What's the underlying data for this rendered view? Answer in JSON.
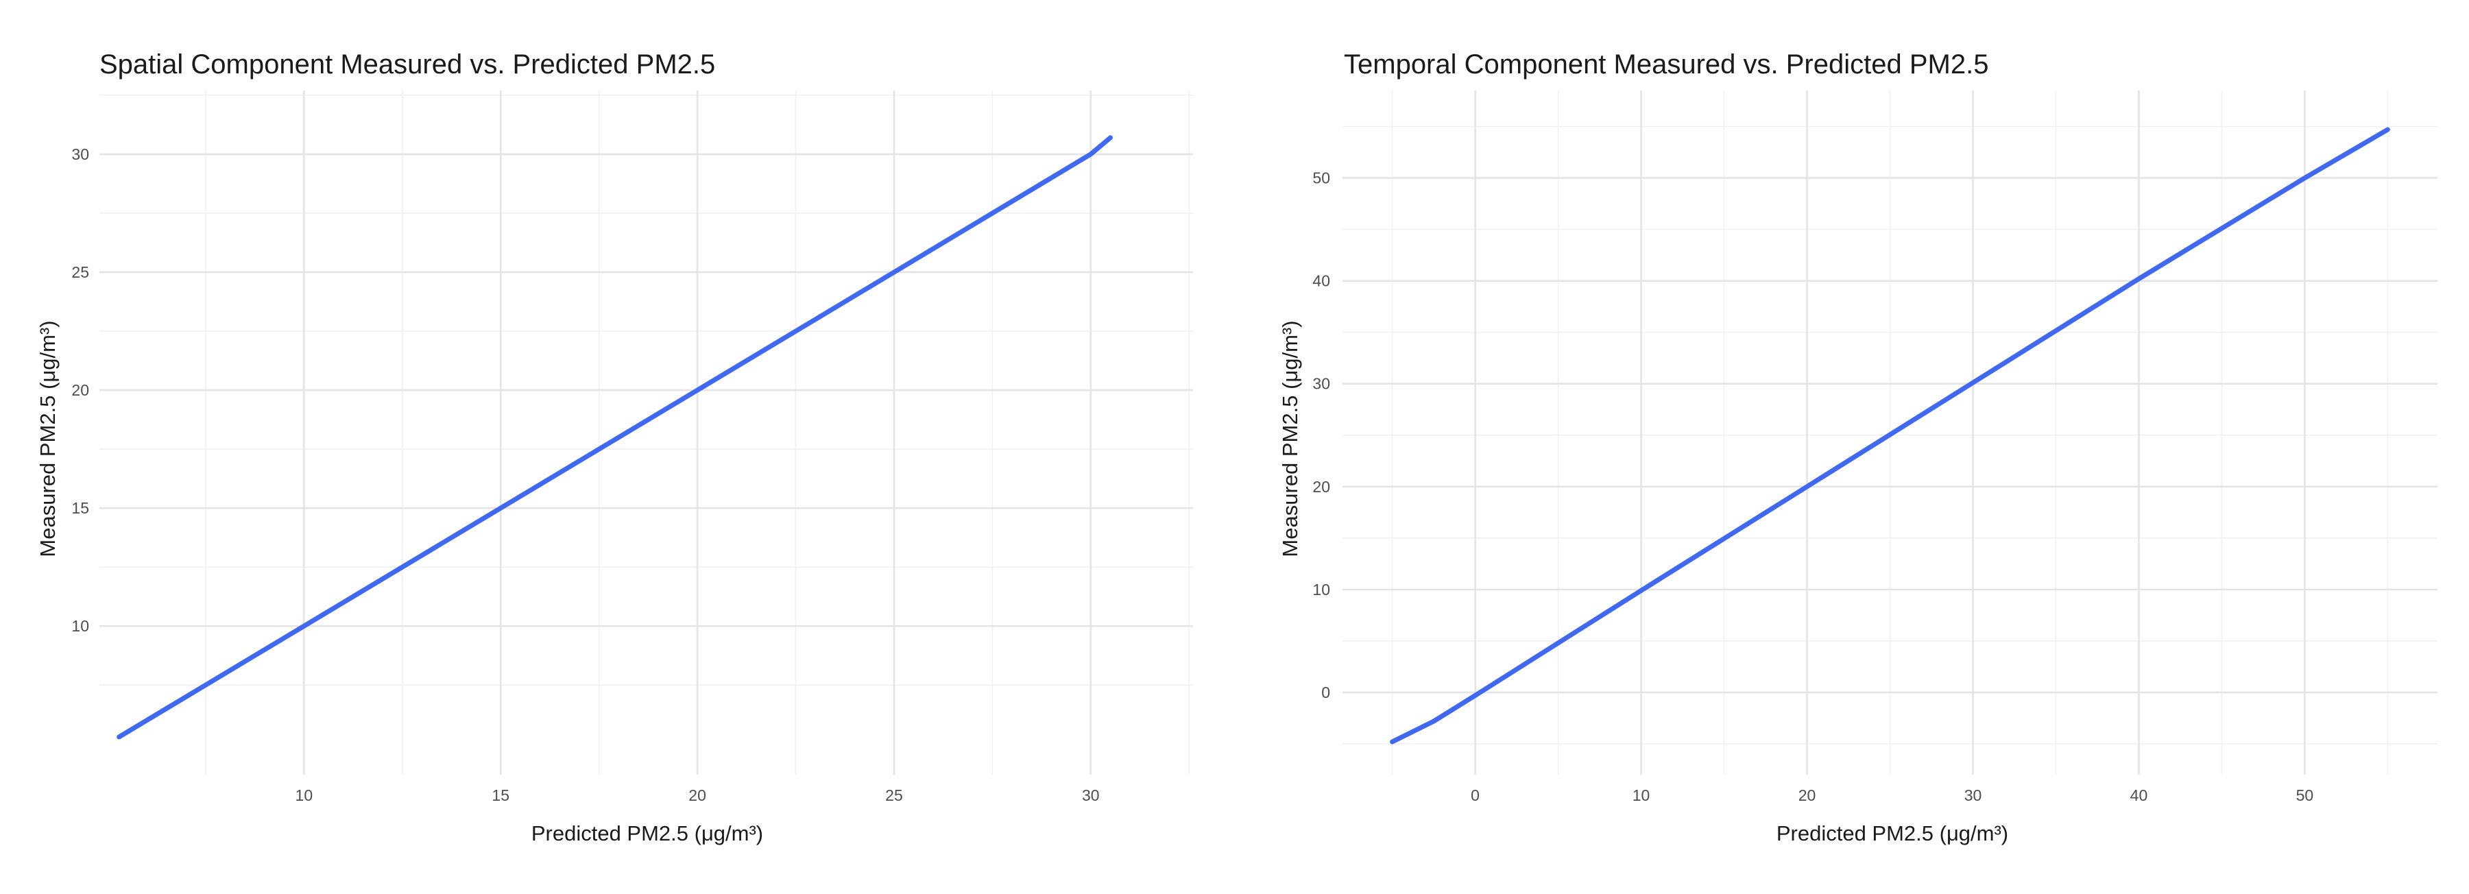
{
  "chart_data": [
    {
      "type": "line",
      "title": "Spatial Component Measured vs. Predicted PM2.5",
      "xlabel": "Predicted PM2.5 (μg/m³)",
      "ylabel": "Measured PM2.5 (μg/m³)",
      "xlim": [
        4.8,
        32.6
      ],
      "ylim": [
        3.7,
        32.7
      ],
      "x_ticks": [
        10,
        15,
        20,
        25,
        30
      ],
      "y_ticks": [
        10,
        15,
        20,
        25,
        30
      ],
      "grid": true,
      "series": [
        {
          "color": "#4169f0",
          "x": [
            5.3,
            10,
            15,
            20,
            25,
            30,
            30.5
          ],
          "y": [
            5.3,
            10,
            15,
            20,
            25,
            30,
            30.7
          ]
        }
      ]
    },
    {
      "type": "line",
      "title": "Temporal Component Measured vs. Predicted PM2.5",
      "xlabel": "Predicted PM2.5 (μg/m³)",
      "ylabel": "Measured PM2.5 (μg/m³)",
      "xlim": [
        -8,
        58
      ],
      "ylim": [
        -8,
        58.5
      ],
      "x_ticks": [
        0,
        10,
        20,
        30,
        40,
        50
      ],
      "y_ticks": [
        0,
        10,
        20,
        30,
        40,
        50
      ],
      "grid": true,
      "series": [
        {
          "color": "#4169f0",
          "x": [
            -5,
            -2.5,
            0,
            10,
            20,
            30,
            40,
            50,
            55
          ],
          "y": [
            -4.8,
            -2.8,
            -0.3,
            9.9,
            20,
            30.1,
            40.2,
            50,
            54.7
          ]
        }
      ]
    }
  ]
}
